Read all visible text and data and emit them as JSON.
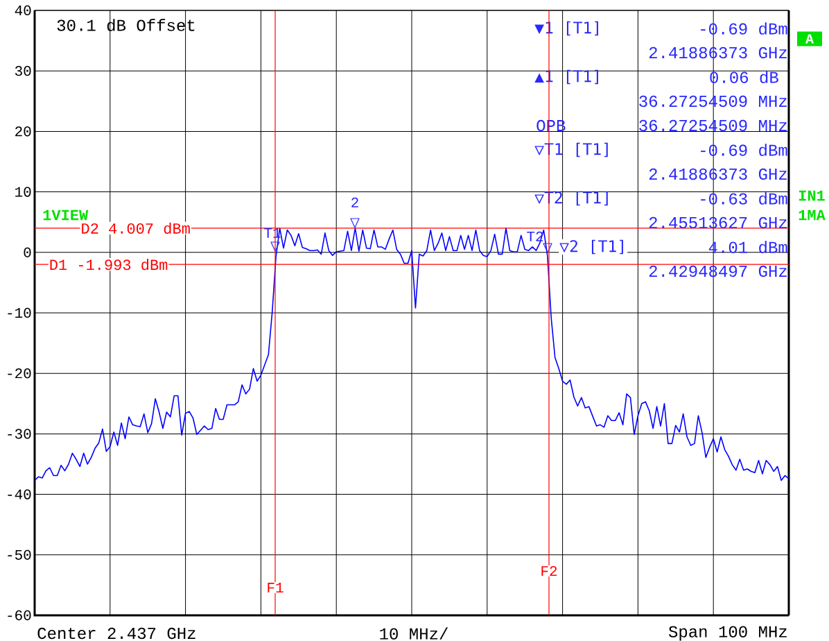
{
  "chart_data": {
    "type": "line",
    "categories": [
      null,
      null,
      null,
      null,
      null,
      null,
      null,
      null,
      null,
      null,
      null,
      null,
      null,
      null,
      null,
      null,
      null,
      null,
      null,
      null,
      null,
      null,
      null,
      null,
      null,
      null,
      null,
      null,
      null,
      null,
      null,
      null,
      null,
      null,
      null,
      null,
      null,
      null,
      null,
      null,
      null,
      null,
      null,
      null,
      null,
      null,
      null,
      null,
      null,
      null,
      null,
      null,
      null,
      null,
      null,
      null,
      null,
      null,
      null,
      null,
      null,
      null,
      null,
      null,
      null,
      null,
      null,
      null,
      null,
      null,
      null,
      null,
      null,
      null,
      null,
      null,
      null,
      null,
      null,
      null,
      null,
      null,
      null,
      null,
      null,
      null,
      null,
      null,
      null,
      null,
      null,
      null,
      null,
      null,
      null,
      null,
      null,
      null,
      null,
      null,
      null,
      null,
      null,
      null,
      null,
      null,
      null,
      null,
      null,
      null,
      null,
      null,
      null,
      null,
      null,
      null,
      null,
      null,
      null,
      null,
      null,
      null,
      null,
      null,
      null,
      null,
      null,
      null,
      null,
      null,
      null,
      null,
      null,
      null,
      null,
      null,
      null,
      null,
      null,
      null,
      null,
      null,
      null,
      null,
      null,
      null,
      null,
      null,
      null,
      null,
      null,
      null,
      null,
      null,
      null,
      null,
      null,
      null,
      null,
      null,
      null,
      null,
      null,
      null,
      null,
      null,
      null,
      null,
      null,
      null,
      null,
      null,
      null,
      null,
      null,
      null,
      null,
      null,
      null,
      null,
      null,
      null,
      null,
      null,
      null,
      null,
      null,
      null,
      null,
      null,
      null,
      null,
      null,
      null,
      null,
      null,
      null,
      null,
      null,
      null,
      null
    ],
    "ylim": [
      -60,
      40
    ],
    "yticks": [
      -60,
      -50,
      -40,
      -30,
      -20,
      -10,
      0,
      10,
      20,
      30,
      40
    ],
    "tick_labels": "y",
    "grid": true,
    "marker": "none",
    "series": [
      {
        "color": "#0000ff",
        "values": [
          -37.7,
          -37.1,
          -37.3,
          -36.1,
          -35.6,
          -36.9,
          -36.9,
          -35.2,
          -36.1,
          -35,
          -33.2,
          -34.2,
          -35.4,
          -33.2,
          -35,
          -33.9,
          -32.4,
          -31.5,
          -29.2,
          -32.9,
          -32.1,
          -29.7,
          -31.9,
          -28.2,
          -30.8,
          -27.2,
          -28.5,
          -28.7,
          -28.8,
          -26.7,
          -29.8,
          -28.3,
          -24.2,
          -26.4,
          -29.1,
          -26.4,
          -27.2,
          -23.7,
          -23.7,
          -30.2,
          -26.6,
          -26.3,
          -27.4,
          -30.1,
          -29.4,
          -28.7,
          -29.3,
          -29.1,
          -25.8,
          -27.6,
          -27.6,
          -25.2,
          -25.2,
          -25.2,
          -24.7,
          -21.9,
          -23.4,
          -22.6,
          -19.2,
          -21.3,
          -20.3,
          -18.6,
          -16.9,
          -9.9,
          -0.7,
          4,
          0.7,
          3.7,
          2.8,
          1.1,
          3.1,
          0.8,
          0.6,
          0.3,
          0.3,
          0.4,
          -0.3,
          3.2,
          0.3,
          -0.5,
          0.1,
          0.2,
          0.3,
          3.5,
          0.3,
          4,
          0.2,
          3.7,
          0.7,
          0.6,
          3.7,
          0.9,
          0.9,
          0.5,
          2.2,
          3.7,
          0.5,
          -0.3,
          -1.8,
          -1.8,
          0.3,
          -9.2,
          -0.3,
          -0.6,
          0.3,
          3.7,
          0.3,
          1.5,
          3.2,
          0.3,
          2.6,
          0.3,
          0.3,
          2.8,
          0.5,
          2.8,
          0.3,
          3.7,
          0.3,
          -0.5,
          -0.7,
          0.3,
          3,
          -0.3,
          -0.3,
          4,
          0.3,
          0.1,
          0.1,
          2.8,
          0.5,
          0.3,
          0.9,
          0.3,
          1.6,
          3.7,
          -0.6,
          -10.9,
          -17.4,
          -19.2,
          -21.3,
          -21.8,
          -21.1,
          -23.9,
          -25.4,
          -24,
          -25.7,
          -25.5,
          -27.1,
          -28.7,
          -28.5,
          -28.9,
          -27,
          -27.8,
          -27.8,
          -26.5,
          -28.5,
          -23.4,
          -24,
          -30.1,
          -27,
          -25,
          -24.7,
          -26.2,
          -29.1,
          -25.5,
          -28.7,
          -25,
          -31.6,
          -31.6,
          -28.6,
          -29.7,
          -26.7,
          -30.5,
          -31.9,
          -31.6,
          -27,
          -29.8,
          -33.9,
          -32.2,
          -30.8,
          -33,
          -30.5,
          -32.6,
          -33.7,
          -35.1,
          -36,
          -34.2,
          -36,
          -35.8,
          -36.2,
          -36.4,
          -34.4,
          -36.6,
          -34.4,
          -35.1,
          -36.2,
          -35.4,
          -37.7,
          -36.9,
          -37.4
        ]
      }
    ],
    "ref_lines": [
      {
        "axis": "y",
        "value": -1.993,
        "label": "D1 -1.993 dBm",
        "color": "#ff0000"
      },
      {
        "axis": "y",
        "value": 4.007,
        "label": "D2 4.007 dBm",
        "color": "#ff0000"
      }
    ],
    "annotations": [
      "30.1 dB Offset",
      "1VIEW",
      "A",
      "IN1",
      "1MA",
      "Center 2.437 GHz",
      "10 MHz/",
      "Span 100 MHz",
      "▼1 [T1]",
      "-0.69 dBm",
      "2.41886373 GHz",
      "▲1 [T1]",
      "0.06 dB",
      "36.27254509 MHz",
      "OPB",
      "36.27254509 MHz",
      "▽T1 [T1]",
      "-0.69 dBm",
      "2.41886373 GHz",
      "▽T2 [T1]",
      "-0.63 dBm",
      "2.45513627 GHz",
      "▽2 [T1]",
      "4.01 dBm",
      "2.42948497 GHz",
      "T1",
      "2",
      "T2",
      "F1",
      "F2"
    ]
  }
}
